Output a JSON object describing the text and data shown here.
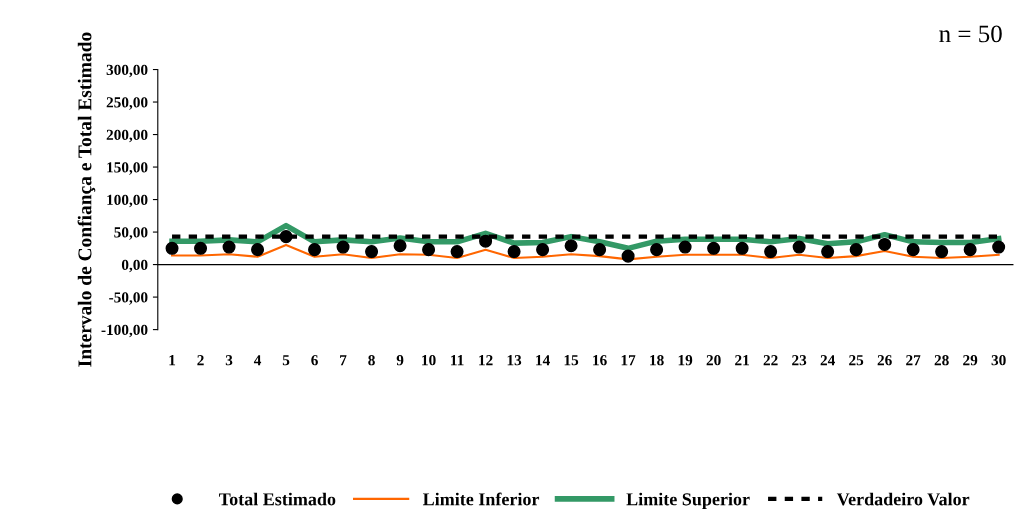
{
  "chart_data": {
    "type": "line",
    "ylabel": "Intervalo de Confiança e Total Estimado",
    "annotations": [
      "n = 50"
    ],
    "categories": [
      "1",
      "2",
      "3",
      "4",
      "5",
      "6",
      "7",
      "8",
      "9",
      "10",
      "11",
      "12",
      "13",
      "14",
      "15",
      "16",
      "17",
      "18",
      "19",
      "20",
      "21",
      "22",
      "23",
      "24",
      "25",
      "26",
      "27",
      "28",
      "29",
      "30"
    ],
    "series": [
      {
        "name": "Total Estimado",
        "type": "scatter",
        "marker": "circle",
        "color": "#000000",
        "values": [
          25,
          25,
          27,
          23,
          43,
          23,
          27,
          20,
          29,
          23,
          20,
          36,
          20,
          23,
          29,
          23,
          13,
          23,
          27,
          25,
          25,
          20,
          27,
          20,
          23,
          31,
          23,
          20,
          23,
          27
        ]
      },
      {
        "name": "Limite Inferior",
        "color": "#ff6600",
        "line_style": "solid",
        "values": [
          14,
          14,
          16,
          12,
          30,
          12,
          16,
          10,
          16,
          15,
          10,
          23,
          10,
          12,
          16,
          13,
          8,
          12,
          15,
          15,
          15,
          10,
          15,
          10,
          13,
          21,
          12,
          10,
          12,
          15
        ]
      },
      {
        "name": "Limite Superior",
        "color": "#339966",
        "line_style": "solid",
        "values": [
          36,
          36,
          38,
          35,
          60,
          35,
          38,
          35,
          41,
          35,
          35,
          48,
          33,
          34,
          43,
          35,
          25,
          36,
          39,
          39,
          39,
          35,
          40,
          32,
          35,
          46,
          35,
          34,
          34,
          40
        ]
      },
      {
        "name": "Verdadeiro Valor",
        "color": "#000000",
        "line_style": "dashed",
        "values": [
          43,
          43,
          43,
          43,
          43,
          43,
          43,
          43,
          43,
          43,
          43,
          43,
          43,
          43,
          43,
          43,
          43,
          43,
          43,
          43,
          43,
          43,
          43,
          43,
          43,
          43,
          43,
          43,
          43,
          43
        ]
      }
    ],
    "ylim": [
      -100,
      300
    ],
    "yticks": [
      {
        "value": -100,
        "label": "-100,00"
      },
      {
        "value": -50,
        "label": "-50,00"
      },
      {
        "value": 0,
        "label": "0,00"
      },
      {
        "value": 50,
        "label": "50,00"
      },
      {
        "value": 100,
        "label": "100,00"
      },
      {
        "value": 150,
        "label": "150,00"
      },
      {
        "value": 200,
        "label": "200,00"
      },
      {
        "value": 250,
        "label": "250,00"
      },
      {
        "value": 300,
        "label": "300,00"
      }
    ],
    "grid": false,
    "legend": "bottom"
  }
}
